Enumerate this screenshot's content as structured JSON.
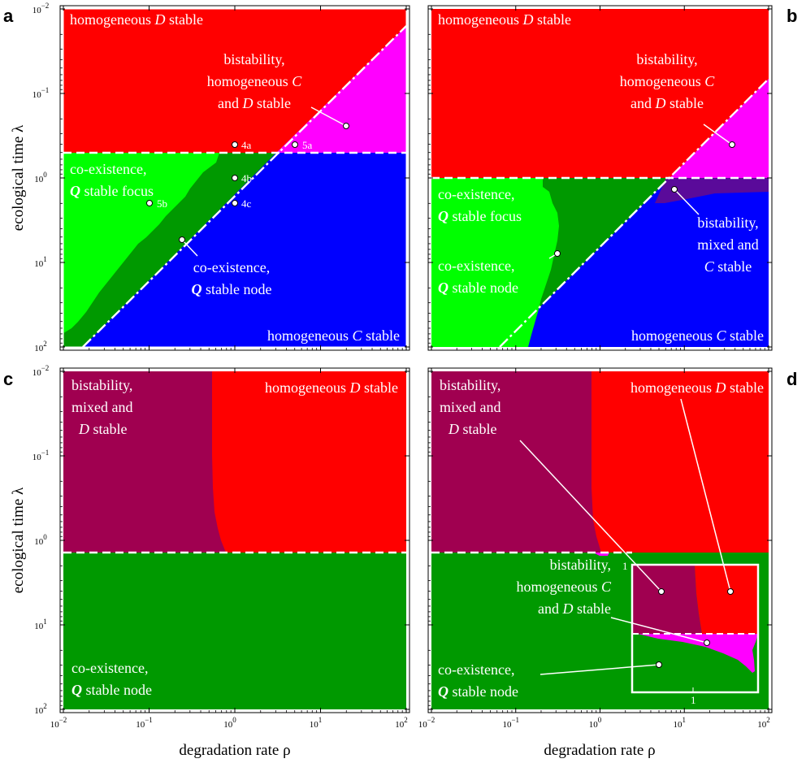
{
  "chart_data": [
    {
      "panel": "a",
      "type": "heatmap",
      "xlabel": "",
      "ylabel": "ecological time λ",
      "x_scale": "log",
      "y_scale": "log",
      "xlim": [
        0.01,
        100
      ],
      "ylim": [
        0.01,
        100
      ],
      "y_inverted": true,
      "threshold_lambda": 0.5,
      "boundary": "dash-dot line λ = 0.06·ρ through (0.015, 100) and (100, 0.01)",
      "regions": [
        {
          "label": "homogeneous D stable",
          "color": "#ff0000"
        },
        {
          "label": "bistability, homogeneous C and D stable",
          "color": "#ff00ff"
        },
        {
          "label": "co-existence, Q stable focus",
          "color": "#00ff00"
        },
        {
          "label": "co-existence, Q stable node",
          "color": "#009900"
        },
        {
          "label": "homogeneous C stable",
          "color": "#0000ff"
        }
      ],
      "markers": [
        {
          "label": "4a",
          "rho": 1,
          "lambda": 0.4
        },
        {
          "label": "5a",
          "rho": 5,
          "lambda": 0.4
        },
        {
          "label": "4b",
          "rho": 1,
          "lambda": 1
        },
        {
          "label": "4c",
          "rho": 1,
          "lambda": 2
        },
        {
          "label": "5b",
          "rho": 0.1,
          "lambda": 2
        }
      ]
    },
    {
      "panel": "b",
      "type": "heatmap",
      "xlabel": "",
      "ylabel": "",
      "x_scale": "log",
      "y_scale": "log",
      "xlim": [
        0.01,
        100
      ],
      "ylim": [
        0.01,
        100
      ],
      "y_inverted": true,
      "threshold_lambda": 1,
      "regions": [
        {
          "label": "homogeneous D stable",
          "color": "#ff0000"
        },
        {
          "label": "bistability, homogeneous C and D stable",
          "color": "#ff00ff"
        },
        {
          "label": "co-existence, Q stable focus",
          "color": "#00ff00"
        },
        {
          "label": "co-existence, Q stable node",
          "color": "#009900"
        },
        {
          "label": "bistability, mixed and C stable",
          "color": "#5a0a9a"
        },
        {
          "label": "homogeneous C stable",
          "color": "#0000ff"
        }
      ]
    },
    {
      "panel": "c",
      "type": "heatmap",
      "xlabel": "degradation rate ρ",
      "ylabel": "ecological time λ",
      "x_scale": "log",
      "y_scale": "log",
      "xlim": [
        0.01,
        100
      ],
      "ylim": [
        0.01,
        100
      ],
      "y_inverted": true,
      "threshold_lambda": 1.3,
      "boundary_rho": 0.55,
      "regions": [
        {
          "label": "bistability, mixed and D stable",
          "color": "#a00050"
        },
        {
          "label": "homogeneous D stable",
          "color": "#ff0000"
        },
        {
          "label": "co-existence, Q stable node",
          "color": "#009900"
        }
      ]
    },
    {
      "panel": "d",
      "type": "heatmap",
      "xlabel": "degradation rate ρ",
      "ylabel": "",
      "x_scale": "log",
      "y_scale": "log",
      "xlim": [
        0.01,
        100
      ],
      "ylim": [
        0.01,
        100
      ],
      "y_inverted": true,
      "threshold_lambda": 1.3,
      "boundary_rho": 0.8,
      "inset_tick": "1",
      "regions": [
        {
          "label": "bistability, mixed and D stable",
          "color": "#a00050"
        },
        {
          "label": "homogeneous D stable",
          "color": "#ff0000"
        },
        {
          "label": "bistability, homogeneous C and D stable",
          "color": "#ff00ff"
        },
        {
          "label": "co-existence, Q stable node",
          "color": "#009900"
        }
      ]
    }
  ],
  "axes": {
    "x_ticks": [
      {
        "e": "−2"
      },
      {
        "e": "−1"
      },
      {
        "e": "0"
      },
      {
        "e": "1"
      },
      {
        "e": "2"
      }
    ],
    "y_ticks": [
      {
        "e": "−2"
      },
      {
        "e": "−1"
      },
      {
        "e": "0"
      },
      {
        "e": "1"
      },
      {
        "e": "2"
      }
    ],
    "base": "10"
  },
  "colors": {
    "red": "#ff0000",
    "magenta": "#ff00ff",
    "lightgreen": "#00ff00",
    "green": "#009900",
    "blue": "#0000ff",
    "purple": "#5a0a9a",
    "maroon": "#a00050"
  }
}
